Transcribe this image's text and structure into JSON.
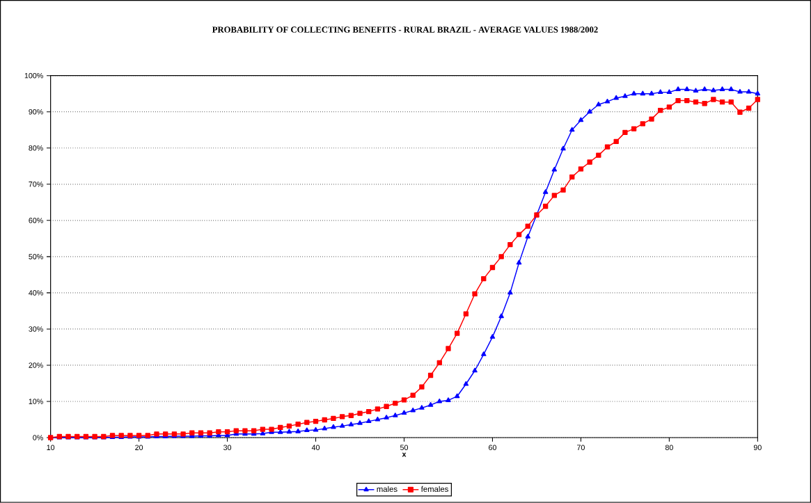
{
  "chart_data": {
    "type": "line",
    "title": "PROBABILITY OF COLLECTING BENEFITS - RURAL BRAZIL -  AVERAGE VALUES 1988/2002",
    "xlabel": "x",
    "x": [
      10,
      11,
      12,
      13,
      14,
      15,
      16,
      17,
      18,
      19,
      20,
      21,
      22,
      23,
      24,
      25,
      26,
      27,
      28,
      29,
      30,
      31,
      32,
      33,
      34,
      35,
      36,
      37,
      38,
      39,
      40,
      41,
      42,
      43,
      44,
      45,
      46,
      47,
      48,
      49,
      50,
      51,
      52,
      53,
      54,
      55,
      56,
      57,
      58,
      59,
      60,
      61,
      62,
      63,
      64,
      65,
      66,
      67,
      68,
      69,
      70,
      71,
      72,
      73,
      74,
      75,
      76,
      77,
      78,
      79,
      80,
      81,
      82,
      83,
      84,
      85,
      86,
      87,
      88,
      89,
      90
    ],
    "series": [
      {
        "name": "males",
        "color": "#0000ff",
        "marker": "triangle",
        "values": [
          0,
          0,
          0,
          0,
          0,
          0,
          0,
          0.1,
          0.1,
          0.2,
          0.2,
          0.2,
          0.3,
          0.3,
          0.4,
          0.4,
          0.4,
          0.5,
          0.5,
          0.6,
          0.6,
          1.0,
          1.0,
          1.0,
          1.1,
          1.5,
          1.5,
          1.6,
          1.7,
          2.0,
          2.1,
          2.5,
          2.9,
          3.2,
          3.6,
          4.0,
          4.5,
          5.0,
          5.5,
          6.1,
          6.8,
          7.5,
          8.2,
          9.0,
          10.0,
          10.3,
          11.4,
          14.8,
          18.5,
          23.0,
          27.8,
          33.5,
          40.0,
          48.3,
          55.5,
          61.5,
          67.8,
          74.0,
          79.8,
          85.0,
          87.7,
          90.0,
          92.0,
          92.8,
          93.8,
          94.3,
          95.0,
          95.0,
          95.0,
          95.4,
          95.4,
          96.2,
          96.2,
          95.8,
          96.2,
          95.9,
          96.2,
          96.2,
          95.5,
          95.5,
          95.0
        ]
      },
      {
        "name": "females",
        "color": "#ff0000",
        "marker": "square",
        "values": [
          0,
          0.3,
          0.3,
          0.3,
          0.3,
          0.3,
          0.3,
          0.6,
          0.6,
          0.6,
          0.6,
          0.6,
          1.0,
          1.0,
          1.0,
          1.0,
          1.3,
          1.3,
          1.3,
          1.6,
          1.6,
          1.9,
          1.9,
          1.9,
          2.3,
          2.3,
          2.8,
          3.2,
          3.7,
          4.2,
          4.5,
          4.9,
          5.3,
          5.8,
          6.1,
          6.7,
          7.2,
          7.9,
          8.6,
          9.5,
          10.4,
          11.7,
          14.0,
          17.2,
          20.7,
          24.6,
          28.8,
          34.2,
          39.7,
          43.9,
          47.0,
          50.0,
          53.3,
          56.1,
          58.4,
          61.5,
          63.9,
          66.9,
          68.4,
          72.0,
          74.2,
          76.1,
          78.0,
          80.3,
          81.8,
          84.3,
          85.3,
          86.7,
          88.0,
          90.4,
          91.3,
          93.1,
          93.1,
          92.7,
          92.3,
          93.4,
          92.7,
          92.7,
          89.9,
          91.0,
          93.4
        ]
      }
    ],
    "xlim": [
      10,
      90
    ],
    "xticks": [
      10,
      20,
      30,
      40,
      50,
      60,
      70,
      80,
      90
    ],
    "ylim": [
      0,
      100
    ],
    "yticks": [
      {
        "value": 0,
        "label": "0%"
      },
      {
        "value": 10,
        "label": "10%"
      },
      {
        "value": 20,
        "label": "20%"
      },
      {
        "value": 30,
        "label": "30%"
      },
      {
        "value": 40,
        "label": "40%"
      },
      {
        "value": 50,
        "label": "50%"
      },
      {
        "value": 60,
        "label": "60%"
      },
      {
        "value": 70,
        "label": "70%"
      },
      {
        "value": 80,
        "label": "80%"
      },
      {
        "value": 90,
        "label": "90%"
      },
      {
        "value": 100,
        "label": "100%"
      }
    ],
    "grid": "y",
    "legend": "bottom",
    "line_style": "solid"
  }
}
